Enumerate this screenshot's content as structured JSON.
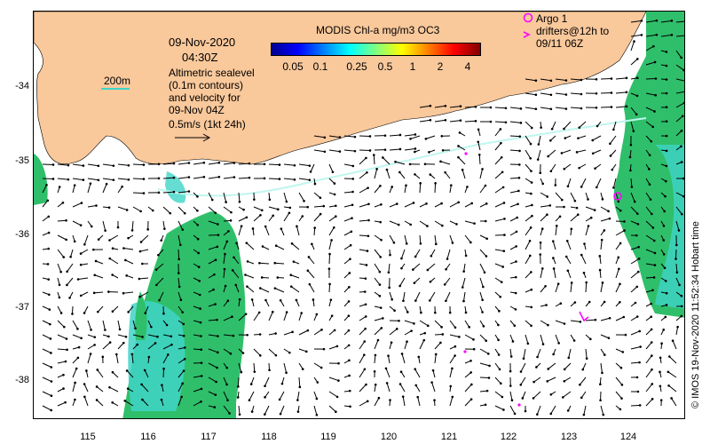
{
  "map": {
    "date": "09-Nov-2020",
    "time": "04:30Z",
    "description_lines": [
      "Altimetric sealevel",
      "(0.1m contours)",
      "and velocity for",
      "09-Nov 04Z",
      "0.5m/s (1kt 24h)"
    ],
    "isobath_label": "200m",
    "credit": "© IMOS 19-Nov-2020 11:52:34 Hobart time",
    "colorbar": {
      "title": "MODIS Chl-a mg/m3 OC3",
      "labels": [
        "0.05",
        "0.1",
        "0.25",
        "0.5",
        "1",
        "2",
        "4"
      ]
    },
    "legend": {
      "argo_label": "Argo 1",
      "drifter_label_1": "drifters@12h to",
      "drifter_label_2": "09/11 06Z"
    },
    "y_ticks": [
      "-34",
      "-35",
      "-36",
      "-37",
      "-38"
    ],
    "x_ticks": [
      "115",
      "116",
      "117",
      "118",
      "119",
      "120",
      "121",
      "122",
      "123",
      "124"
    ],
    "extent": {
      "lon": [
        114.0,
        124.8
      ],
      "lat": [
        -38.55,
        -32.95
      ]
    },
    "colors": {
      "land": "#f9c89b",
      "chl_green": "#2fbf6a",
      "chl_cyan": "#3fd4c8",
      "argo": "#ff00ff",
      "arrow": "#000000"
    }
  }
}
